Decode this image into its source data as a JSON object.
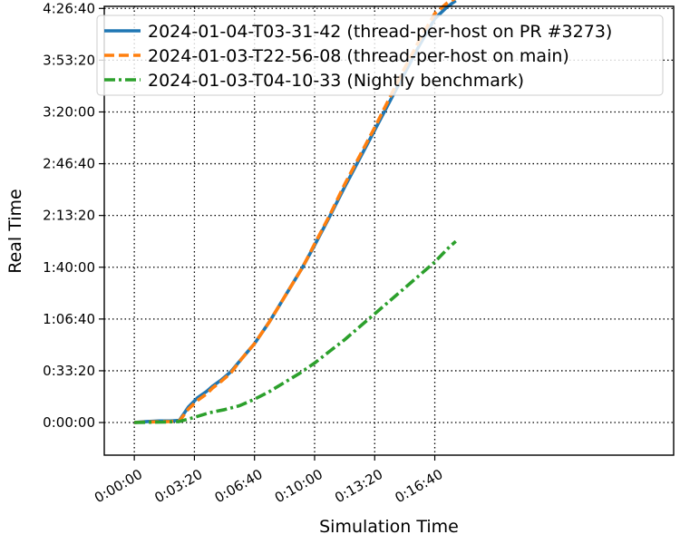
{
  "chart_data": {
    "type": "line",
    "title": "",
    "xlabel": "Simulation Time",
    "ylabel": "Real Time",
    "x_unit": "seconds",
    "y_unit": "seconds",
    "xlim": [
      -100,
      1795
    ],
    "ylim": [
      -1260,
      16080
    ],
    "x_ticks": [
      {
        "value": 0,
        "label": "0:00:00"
      },
      {
        "value": 200,
        "label": "0:03:20"
      },
      {
        "value": 400,
        "label": "0:06:40"
      },
      {
        "value": 600,
        "label": "0:10:00"
      },
      {
        "value": 800,
        "label": "0:13:20"
      },
      {
        "value": 1000,
        "label": "0:16:40"
      }
    ],
    "y_ticks": [
      {
        "value": 0,
        "label": "0:00:00"
      },
      {
        "value": 2000,
        "label": "0:33:20"
      },
      {
        "value": 4000,
        "label": "1:06:40"
      },
      {
        "value": 6000,
        "label": "1:40:00"
      },
      {
        "value": 8000,
        "label": "2:13:20"
      },
      {
        "value": 10000,
        "label": "2:46:40"
      },
      {
        "value": 12000,
        "label": "3:20:00"
      },
      {
        "value": 14000,
        "label": "3:53:20"
      },
      {
        "value": 16000,
        "label": "4:26:40"
      }
    ],
    "grid": true,
    "grid_style": "dotted",
    "legend_position": "top-left",
    "series": [
      {
        "name": "2024-01-04-T03-31-42 (thread-per-host on PR #3273)",
        "color": "#1f77b4",
        "linestyle": "solid",
        "x": [
          0,
          30,
          80,
          120,
          150,
          180,
          210,
          240,
          260,
          290,
          320,
          360,
          400,
          450,
          500,
          560,
          600,
          650,
          700,
          750,
          800,
          850,
          900,
          950,
          1000,
          1040,
          1070
        ],
        "y": [
          0,
          30,
          60,
          60,
          80,
          600,
          950,
          1200,
          1400,
          1650,
          1950,
          2500,
          3050,
          3900,
          4850,
          6000,
          6850,
          7950,
          9100,
          10200,
          11300,
          12400,
          13500,
          14600,
          15600,
          16050,
          16300
        ]
      },
      {
        "name": "2024-01-03-T22-56-08 (thread-per-host on main)",
        "color": "#ff7f0e",
        "linestyle": "dashed",
        "x": [
          0,
          30,
          80,
          120,
          150,
          180,
          210,
          240,
          260,
          290,
          320,
          360,
          400,
          450,
          500,
          560,
          600,
          650,
          700,
          750,
          800,
          850,
          900,
          950,
          1000,
          1040,
          1070
        ],
        "y": [
          0,
          20,
          30,
          40,
          60,
          520,
          850,
          1100,
          1330,
          1600,
          1900,
          2500,
          3050,
          3900,
          4850,
          6000,
          6900,
          8000,
          9200,
          10300,
          11400,
          12550,
          13700,
          14800,
          15800,
          16200,
          16400
        ]
      },
      {
        "name": "2024-01-03-T04-10-33 (Nightly benchmark)",
        "color": "#2ca02c",
        "linestyle": "dashdot",
        "x": [
          0,
          50,
          100,
          150,
          200,
          250,
          300,
          350,
          400,
          450,
          500,
          550,
          600,
          650,
          700,
          750,
          800,
          850,
          900,
          950,
          1000,
          1050,
          1070
        ],
        "y": [
          0,
          10,
          20,
          40,
          200,
          380,
          500,
          650,
          900,
          1200,
          1550,
          1900,
          2300,
          2750,
          3200,
          3700,
          4200,
          4700,
          5200,
          5700,
          6200,
          6800,
          7000
        ]
      }
    ]
  }
}
